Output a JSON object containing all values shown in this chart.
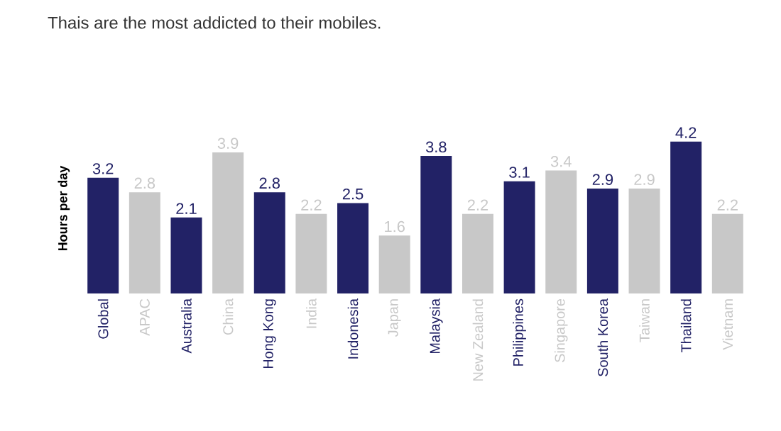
{
  "chart_data": {
    "type": "bar",
    "title": "Thais are the most addicted to their mobiles.",
    "ylabel": "Hours per day",
    "categories": [
      "Global",
      "APAC",
      "Australia",
      "China",
      "Hong Kong",
      "India",
      "Indonesia",
      "Japan",
      "Malaysia",
      "New Zealand",
      "Philippines",
      "Singapore",
      "South Korea",
      "Taiwan",
      "Thailand",
      "Vietnam"
    ],
    "values": [
      3.2,
      2.8,
      2.1,
      3.9,
      2.8,
      2.2,
      2.5,
      1.6,
      3.8,
      2.2,
      3.1,
      3.4,
      2.9,
      2.9,
      4.2,
      2.2
    ],
    "colors": [
      "#222266",
      "#c8c8c8",
      "#222266",
      "#c8c8c8",
      "#222266",
      "#c8c8c8",
      "#222266",
      "#c8c8c8",
      "#222266",
      "#c8c8c8",
      "#222266",
      "#c8c8c8",
      "#222266",
      "#c8c8c8",
      "#222266",
      "#c8c8c8"
    ],
    "data_labels": true
  }
}
